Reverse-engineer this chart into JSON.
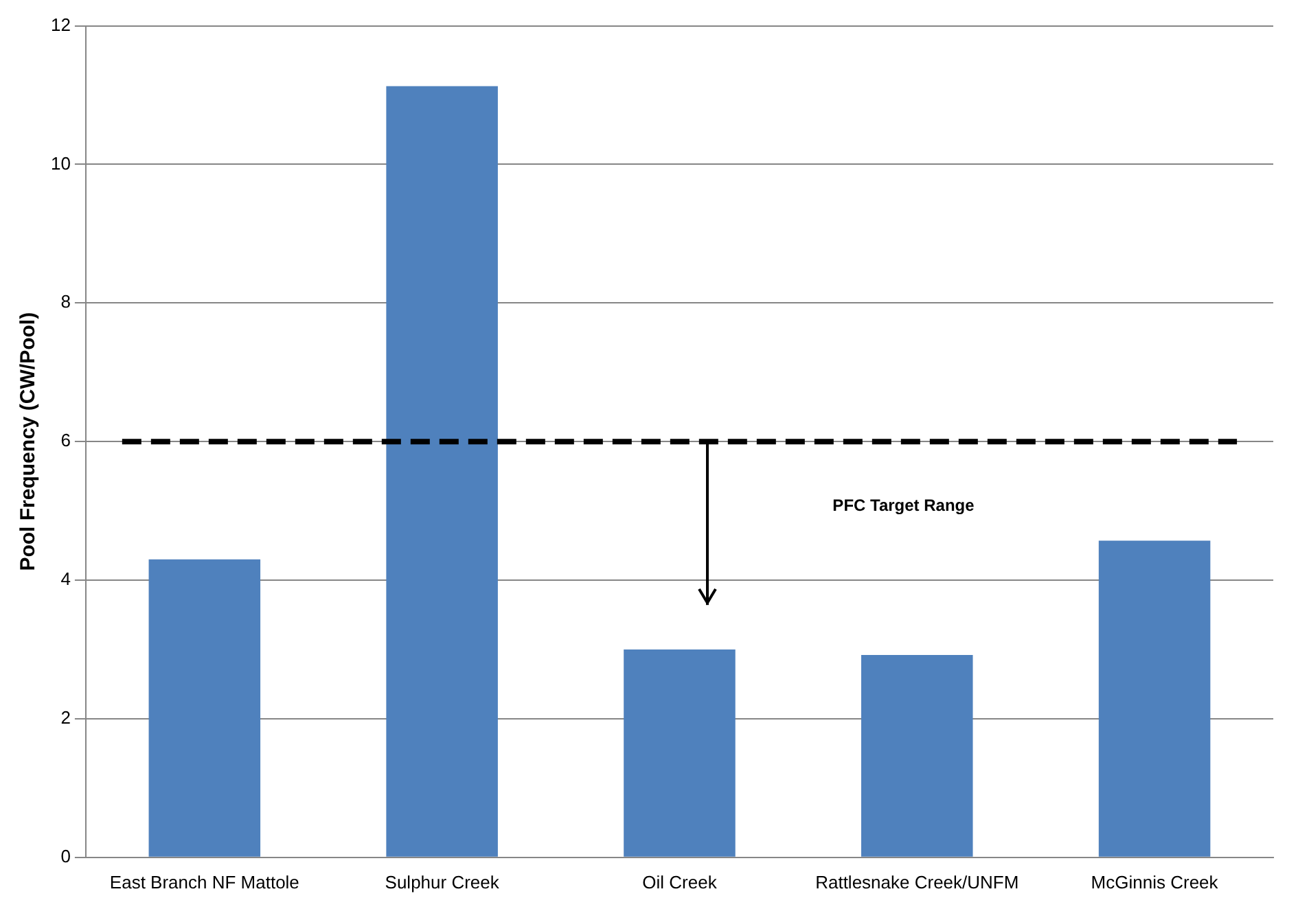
{
  "chart_data": {
    "type": "bar",
    "ylabel": "Pool Frequency (CW/Pool)",
    "categories": [
      "East Branch NF Mattole",
      "Sulphur Creek",
      "Oil Creek",
      "Rattlesnake Creek/UNFM",
      "McGinnis Creek"
    ],
    "values": [
      4.3,
      11.13,
      3.0,
      2.92,
      4.57
    ],
    "color": "#4f81bd",
    "ylim": [
      0,
      12
    ],
    "yticks": [
      0,
      2,
      4,
      6,
      8,
      10,
      12
    ],
    "grid": "y",
    "legend": false,
    "ref_lines": [
      {
        "axis": "y",
        "value": 6,
        "color": "#000000",
        "line_style": "dashed"
      }
    ],
    "annotations": [
      "PFC Target Range"
    ]
  }
}
